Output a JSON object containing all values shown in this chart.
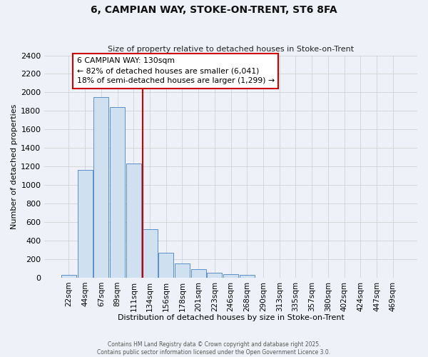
{
  "title1": "6, CAMPIAN WAY, STOKE-ON-TRENT, ST6 8FA",
  "title2": "Size of property relative to detached houses in Stoke-on-Trent",
  "xlabel": "Distribution of detached houses by size in Stoke-on-Trent",
  "ylabel": "Number of detached properties",
  "categories": [
    "22sqm",
    "44sqm",
    "67sqm",
    "89sqm",
    "111sqm",
    "134sqm",
    "156sqm",
    "178sqm",
    "201sqm",
    "223sqm",
    "246sqm",
    "268sqm",
    "290sqm",
    "313sqm",
    "335sqm",
    "357sqm",
    "380sqm",
    "402sqm",
    "424sqm",
    "447sqm",
    "469sqm"
  ],
  "values": [
    30,
    1160,
    1950,
    1840,
    1230,
    520,
    270,
    155,
    90,
    50,
    35,
    30,
    0,
    0,
    0,
    0,
    0,
    0,
    0,
    0,
    0
  ],
  "bar_color": "#cfe0f0",
  "bar_edge_color": "#5b8fc9",
  "vline_color": "#cc0000",
  "annotation_text": "6 CAMPIAN WAY: 130sqm\n← 82% of detached houses are smaller (6,041)\n18% of semi-detached houses are larger (1,299) →",
  "annotation_box_color": "white",
  "annotation_box_edge": "#cc0000",
  "ylim": [
    0,
    2400
  ],
  "yticks": [
    0,
    200,
    400,
    600,
    800,
    1000,
    1200,
    1400,
    1600,
    1800,
    2000,
    2200,
    2400
  ],
  "grid_color": "#cccccc",
  "bg_color": "#eef2f8",
  "footer1": "Contains HM Land Registry data © Crown copyright and database right 2025.",
  "footer2": "Contains public sector information licensed under the Open Government Licence 3.0."
}
